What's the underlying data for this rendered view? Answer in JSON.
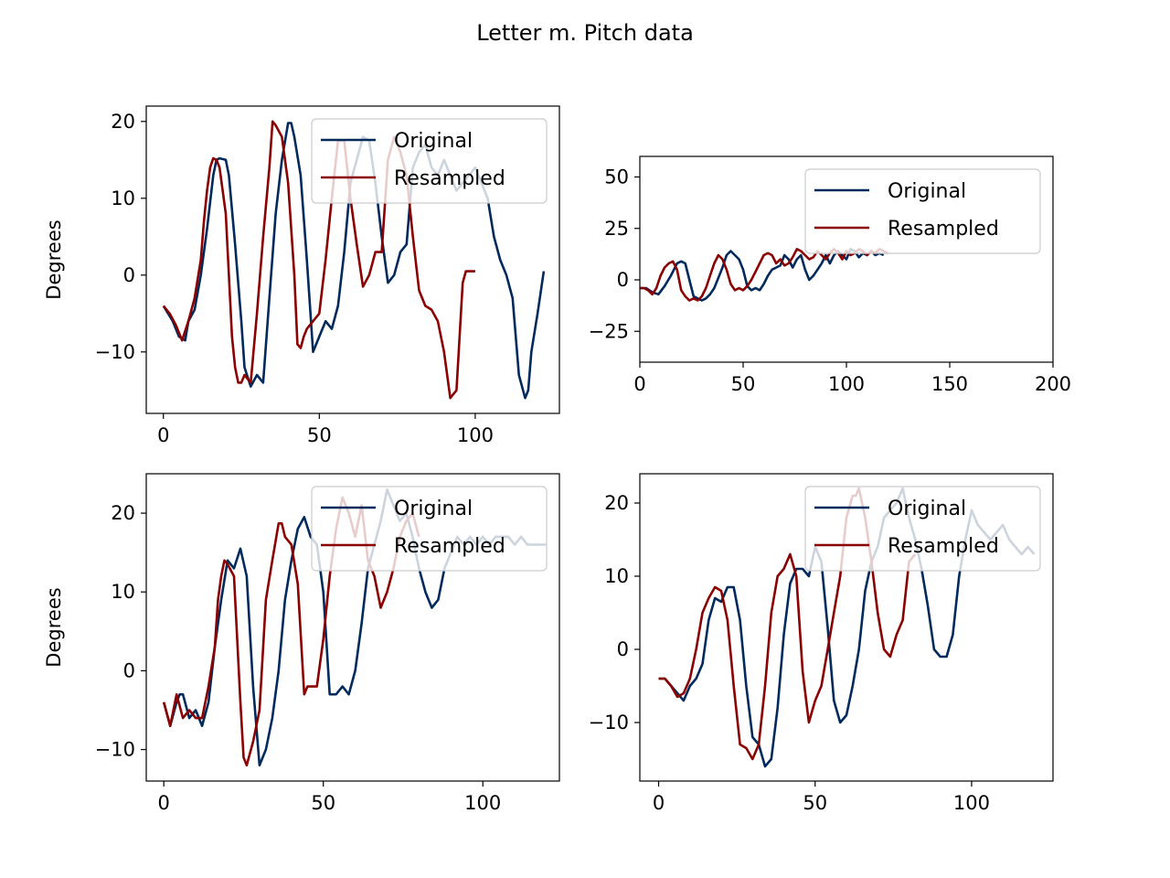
{
  "figure": {
    "title": "Letter m. Pitch data"
  },
  "colors": {
    "original": "#002a5c",
    "resampled": "#8b0000"
  },
  "chart_data": [
    {
      "type": "line",
      "title": "",
      "xlabel": "",
      "ylabel": "Degrees",
      "xlim": [
        -5.5,
        127
      ],
      "ylim": [
        -18,
        22
      ],
      "xticks": [
        0,
        50,
        100
      ],
      "yticks": [
        -10,
        0,
        10,
        20
      ],
      "legend": "top-right",
      "series": [
        {
          "name": "Original",
          "color": "#002a5c",
          "x": [
            0,
            3,
            5,
            7,
            8,
            10,
            12,
            14,
            16,
            17,
            18,
            20,
            21,
            23,
            25,
            26,
            28,
            30,
            32,
            34,
            36,
            38,
            40,
            41,
            42,
            44,
            46,
            48,
            50,
            52,
            54,
            56,
            58,
            60,
            62,
            64,
            66,
            68,
            70,
            72,
            74,
            76,
            78,
            80,
            82,
            84,
            86,
            88,
            90,
            92,
            94,
            96,
            98,
            100,
            102,
            104,
            106,
            108,
            110,
            112,
            114,
            116,
            117,
            118,
            120,
            122
          ],
          "y": [
            -4,
            -6,
            -8,
            -8.5,
            -6,
            -4.5,
            0,
            6,
            13,
            15,
            15.2,
            15,
            13,
            4,
            -6,
            -12,
            -14.5,
            -13,
            -14,
            -3,
            8,
            15,
            19.8,
            19.8,
            18,
            13,
            2,
            -10,
            -8,
            -6,
            -7,
            -4,
            3,
            12,
            15,
            18,
            17.5,
            12,
            5,
            -1,
            0,
            3,
            4,
            14,
            16,
            17,
            14,
            13,
            15,
            13,
            11,
            12,
            13,
            14,
            12,
            10,
            5,
            2,
            0,
            -3,
            -13,
            -16,
            -15,
            -10,
            -5,
            0.5
          ]
        },
        {
          "name": "Resampled",
          "color": "#8b0000",
          "x": [
            0,
            2,
            4,
            6,
            8,
            10,
            12,
            13,
            14,
            15,
            16,
            17,
            18,
            20,
            21,
            22,
            23,
            24,
            25,
            26,
            28,
            30,
            32,
            34,
            35,
            36,
            38,
            40,
            42,
            43,
            44,
            45,
            46,
            48,
            50,
            52,
            54,
            56,
            58,
            60,
            62,
            64,
            66,
            68,
            70,
            72,
            74,
            76,
            78,
            80,
            82,
            84,
            86,
            88,
            90,
            92,
            94,
            95,
            96,
            97,
            98,
            100
          ],
          "y": [
            -4,
            -5,
            -6.5,
            -8.5,
            -6,
            -3,
            2,
            7,
            11,
            14,
            15.2,
            15,
            14,
            8,
            0,
            -8,
            -12,
            -14,
            -14,
            -13,
            -14,
            -5,
            5,
            14,
            20,
            19.5,
            18,
            12,
            0,
            -9,
            -9.5,
            -8,
            -7,
            -6,
            -5,
            2,
            10,
            17.5,
            17.5,
            10,
            4,
            -1.5,
            0,
            3,
            3,
            15,
            18,
            16,
            13,
            5,
            -2,
            -4,
            -4.5,
            -6,
            -10,
            -16,
            -15,
            -8,
            -1,
            0.5,
            0.5,
            0.5
          ]
        }
      ]
    },
    {
      "type": "line",
      "title": "",
      "xlabel": "",
      "ylabel": "",
      "xlim": [
        0,
        200
      ],
      "ylim": [
        -40,
        60
      ],
      "xticks": [
        0,
        50,
        100,
        150,
        200
      ],
      "yticks": [
        -25,
        0,
        25,
        50
      ],
      "legend": "top-right",
      "series": [
        {
          "name": "Original",
          "color": "#002a5c",
          "x": [
            0,
            3,
            6,
            9,
            12,
            15,
            18,
            20,
            22,
            24,
            26,
            28,
            30,
            32,
            34,
            36,
            38,
            40,
            42,
            44,
            46,
            48,
            50,
            52,
            54,
            56,
            58,
            60,
            62,
            64,
            66,
            68,
            70,
            72,
            74,
            76,
            78,
            80,
            82,
            84,
            86,
            88,
            90,
            92,
            94,
            96,
            98,
            100,
            102,
            104,
            106,
            108,
            110,
            112,
            114,
            116,
            118
          ],
          "y": [
            -4,
            -4,
            -6,
            -7,
            -3,
            2,
            8,
            9,
            8,
            0,
            -8,
            -9,
            -10,
            -9,
            -7,
            -4,
            1,
            6,
            12,
            14,
            12,
            10,
            5,
            -3,
            -5,
            -4,
            -5,
            -2,
            2,
            5,
            6,
            7,
            12,
            10,
            6,
            10,
            12,
            5,
            0,
            2,
            5,
            8,
            12,
            8,
            12,
            14,
            12,
            10,
            15,
            14,
            11,
            13,
            12,
            14,
            12,
            13,
            12
          ]
        },
        {
          "name": "Resampled",
          "color": "#8b0000",
          "x": [
            0,
            2,
            4,
            6,
            8,
            10,
            12,
            14,
            16,
            18,
            20,
            22,
            24,
            26,
            28,
            30,
            32,
            34,
            36,
            38,
            40,
            42,
            44,
            46,
            48,
            50,
            52,
            54,
            56,
            58,
            60,
            62,
            64,
            66,
            68,
            70,
            72,
            74,
            76,
            78,
            80,
            82,
            84,
            86,
            88,
            90,
            92,
            94,
            96,
            98,
            100,
            102,
            104,
            106,
            108,
            110,
            112,
            114,
            116,
            118,
            120
          ],
          "y": [
            -4,
            -4,
            -5,
            -7,
            -4,
            2,
            6,
            8,
            9,
            5,
            -5,
            -8,
            -10,
            -9,
            -10,
            -8,
            -4,
            2,
            8,
            12,
            10,
            5,
            -2,
            -5,
            -4,
            -5,
            -3,
            0,
            4,
            8,
            12,
            13,
            12,
            8,
            10,
            7,
            8,
            11,
            15,
            14,
            12,
            10,
            11,
            14,
            12,
            10,
            13,
            15,
            13,
            10,
            14,
            12,
            13,
            15,
            14,
            12,
            14,
            13,
            15,
            14,
            13
          ]
        }
      ]
    },
    {
      "type": "line",
      "title": "",
      "xlabel": "",
      "ylabel": "Degrees",
      "xlim": [
        -5.5,
        124
      ],
      "ylim": [
        -14,
        25
      ],
      "xticks": [
        0,
        50,
        100
      ],
      "yticks": [
        -10,
        0,
        10,
        20
      ],
      "legend": "top-right",
      "series": [
        {
          "name": "Original",
          "color": "#002a5c",
          "x": [
            0,
            2,
            4,
            5,
            6,
            8,
            10,
            12,
            14,
            16,
            18,
            20,
            22,
            24,
            26,
            28,
            30,
            32,
            34,
            36,
            38,
            40,
            42,
            44,
            46,
            48,
            50,
            52,
            54,
            56,
            58,
            60,
            62,
            64,
            66,
            68,
            70,
            72,
            74,
            76,
            78,
            80,
            82,
            84,
            86,
            88,
            90,
            92,
            94,
            96,
            98,
            100,
            102,
            104,
            106,
            108,
            110,
            112,
            114,
            116,
            118,
            120
          ],
          "y": [
            -4,
            -7,
            -4,
            -3,
            -3,
            -6,
            -5,
            -7,
            -4,
            3,
            9,
            14,
            13,
            15.5,
            12,
            -2,
            -12,
            -10,
            -6,
            0,
            9,
            14,
            18,
            19.5,
            17,
            16,
            10,
            -3,
            -3,
            -2,
            -3,
            0,
            6,
            13,
            16,
            19,
            23,
            21,
            19,
            20,
            17,
            13,
            10,
            8,
            9,
            13,
            15,
            17,
            16,
            17,
            16,
            17,
            16,
            17,
            17,
            17,
            16,
            17,
            16,
            16,
            16,
            16
          ]
        },
        {
          "name": "Resampled",
          "color": "#8b0000",
          "x": [
            0,
            2,
            4,
            6,
            8,
            10,
            12,
            14,
            16,
            17,
            18,
            19,
            20,
            22,
            24,
            25,
            26,
            28,
            30,
            32,
            34,
            36,
            37,
            38,
            40,
            42,
            44,
            45,
            46,
            48,
            50,
            52,
            54,
            56,
            58,
            60,
            62,
            64,
            66,
            68,
            70,
            72,
            74,
            76,
            78,
            80
          ],
          "y": [
            -4,
            -7,
            -3,
            -6,
            -5,
            -6,
            -6,
            -2,
            3,
            9,
            12,
            14,
            13.5,
            12,
            -4,
            -11,
            -12,
            -9,
            -5,
            9,
            14,
            18.7,
            18.7,
            17,
            16,
            11,
            -3,
            -2,
            -2,
            -2,
            4,
            12,
            18,
            22,
            20,
            17,
            21,
            14,
            12,
            8,
            10,
            13,
            17,
            19,
            20,
            17
          ]
        }
      ]
    },
    {
      "type": "line",
      "title": "",
      "xlabel": "",
      "ylabel": "",
      "xlim": [
        -6,
        126
      ],
      "ylim": [
        -18,
        24
      ],
      "xticks": [
        0,
        50,
        100
      ],
      "yticks": [
        -10,
        0,
        10,
        20
      ],
      "legend": "top-right",
      "series": [
        {
          "name": "Original",
          "color": "#002a5c",
          "x": [
            0,
            2,
            4,
            6,
            8,
            10,
            12,
            14,
            16,
            18,
            20,
            22,
            24,
            26,
            28,
            30,
            32,
            34,
            36,
            38,
            40,
            42,
            44,
            46,
            48,
            50,
            52,
            54,
            56,
            58,
            60,
            62,
            64,
            66,
            68,
            70,
            72,
            74,
            76,
            78,
            80,
            82,
            84,
            86,
            88,
            90,
            92,
            94,
            96,
            98,
            100,
            102,
            104,
            106,
            108,
            110,
            112,
            114,
            116,
            118,
            120
          ],
          "y": [
            -4,
            -4,
            -5,
            -6,
            -7,
            -5,
            -4,
            -2,
            4,
            7,
            6.5,
            8.5,
            8.5,
            4,
            -5,
            -12,
            -13,
            -16,
            -15,
            -8,
            2,
            9,
            11,
            11,
            10,
            14,
            12,
            3,
            -7,
            -10,
            -9,
            -5,
            0,
            8,
            12,
            14,
            18,
            19,
            20,
            22,
            18,
            15,
            11,
            6,
            0,
            -1,
            -1,
            2,
            10,
            15,
            19,
            17,
            16,
            15,
            16,
            17,
            15,
            14,
            13,
            14,
            13
          ]
        },
        {
          "name": "Resampled",
          "color": "#8b0000",
          "x": [
            0,
            2,
            4,
            6,
            8,
            10,
            12,
            14,
            16,
            18,
            20,
            22,
            24,
            26,
            28,
            30,
            32,
            34,
            36,
            38,
            40,
            42,
            44,
            46,
            48,
            50,
            52,
            54,
            56,
            58,
            60,
            62,
            63,
            64,
            66,
            68,
            70,
            72,
            74,
            76,
            78,
            80,
            82
          ],
          "y": [
            -4,
            -4,
            -5,
            -6.5,
            -6,
            -4,
            0,
            5,
            7,
            8.5,
            8,
            4,
            -5,
            -13,
            -13.5,
            -15,
            -13,
            -5,
            5,
            10,
            11,
            13,
            10,
            -3,
            -10,
            -7,
            -5,
            0,
            5,
            10,
            18,
            21,
            21,
            22,
            18,
            12,
            5,
            0,
            -1,
            2,
            4,
            12,
            13
          ]
        }
      ]
    }
  ]
}
